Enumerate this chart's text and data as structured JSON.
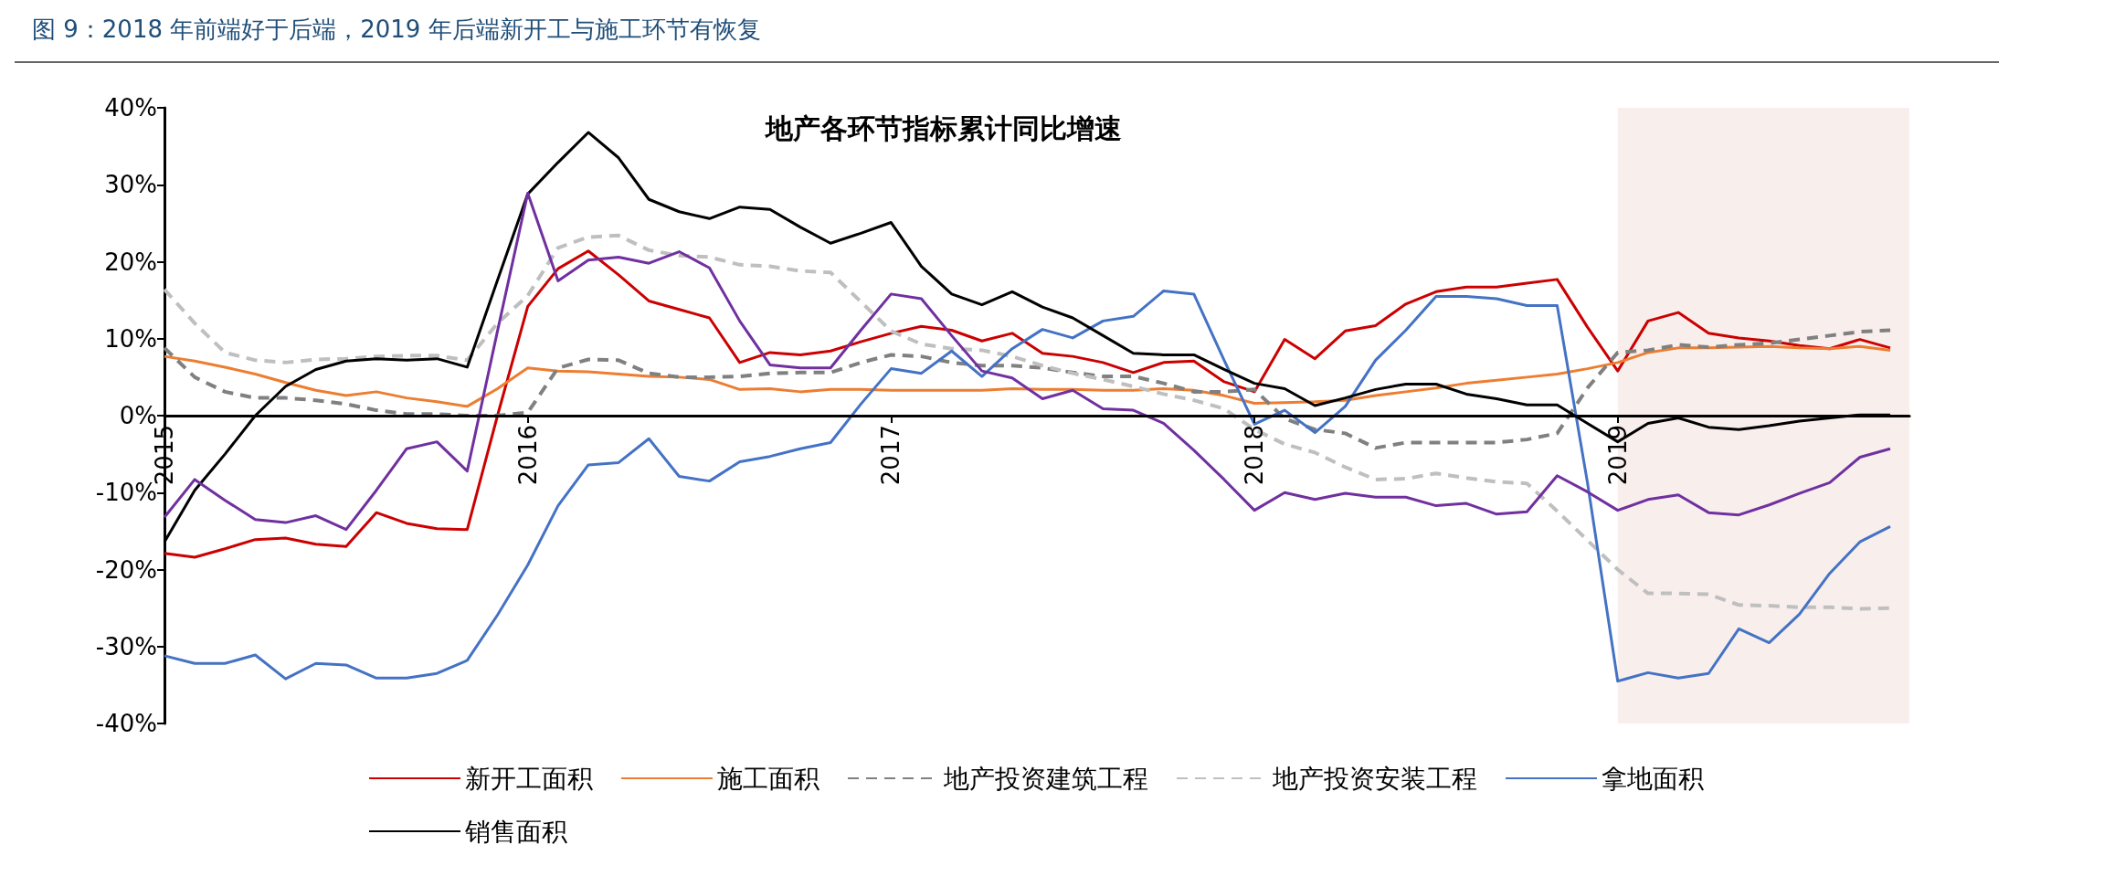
{
  "chart_data": {
    "type": "line",
    "title": "图 9：2018 年前端好于后端，2019 年后端新开工与施工环节有恢复",
    "subtitle": "地产各环节指标累计同比增速",
    "x": [
      "2015-01",
      "2015-02",
      "2015-03",
      "2015-04",
      "2015-05",
      "2015-06",
      "2015-07",
      "2015-08",
      "2015-09",
      "2015-10",
      "2015-11",
      "2015-12",
      "2016-01",
      "2016-02",
      "2016-03",
      "2016-04",
      "2016-05",
      "2016-06",
      "2016-07",
      "2016-08",
      "2016-09",
      "2016-10",
      "2016-11",
      "2016-12",
      "2017-01",
      "2017-02",
      "2017-03",
      "2017-04",
      "2017-05",
      "2017-06",
      "2017-07",
      "2017-08",
      "2017-09",
      "2017-10",
      "2017-11",
      "2017-12",
      "2018-01",
      "2018-02",
      "2018-03",
      "2018-04",
      "2018-05",
      "2018-06",
      "2018-07",
      "2018-08",
      "2018-09",
      "2018-10",
      "2018-11",
      "2018-12",
      "2019-01",
      "2019-02",
      "2019-03",
      "2019-04",
      "2019-05",
      "2019-06",
      "2019-07",
      "2019-08",
      "2019-09",
      "2019-10"
    ],
    "xlim": [
      "2015-01",
      "2019-10-20"
    ],
    "xticks": [
      {
        "value": "2015-01",
        "label": "2015"
      },
      {
        "value": "2016-01",
        "label": "2016"
      },
      {
        "value": "2017-01",
        "label": "2017"
      },
      {
        "value": "2018-01",
        "label": "2018"
      },
      {
        "value": "2019-01",
        "label": "2019"
      }
    ],
    "ylim": [
      -40,
      40
    ],
    "yticks": [
      {
        "value": -40,
        "label": "-40%"
      },
      {
        "value": -30,
        "label": "-30%"
      },
      {
        "value": -20,
        "label": "-20%"
      },
      {
        "value": -10,
        "label": "-10%"
      },
      {
        "value": 0,
        "label": "0%"
      },
      {
        "value": 10,
        "label": "10%"
      },
      {
        "value": 20,
        "label": "20%"
      },
      {
        "value": 30,
        "label": "30%"
      },
      {
        "value": 40,
        "label": "40%"
      }
    ],
    "grid": false,
    "legend": "bottom",
    "marker": "none",
    "bands": [
      {
        "axis": "x",
        "from": "2019-01",
        "to": "2019-10-20",
        "color": "#f8efed"
      }
    ],
    "series": [
      {
        "name": "新开工面积",
        "color": "#cc0000",
        "line_style": "solid",
        "values": [
          -17.9,
          -18.4,
          -17.3,
          -16.1,
          -15.9,
          -16.7,
          -17.0,
          -12.6,
          -14.0,
          -14.7,
          -14.8,
          0,
          14.2,
          19.1,
          21.4,
          18.3,
          14.9,
          13.8,
          12.7,
          6.9,
          8.2,
          7.9,
          8.4,
          9.6,
          10.7,
          11.6,
          11.1,
          9.7,
          10.7,
          8.1,
          7.7,
          6.9,
          5.6,
          6.9,
          7.1,
          4.4,
          3.1,
          9.9,
          7.4,
          11.0,
          11.7,
          14.5,
          16.1,
          16.7,
          16.7,
          17.2,
          17.7,
          11.5,
          5.8,
          12.3,
          13.4,
          10.7,
          10.1,
          9.7,
          9.1,
          8.7,
          9.9,
          8.8
        ]
      },
      {
        "name": "施工面积",
        "color": "#ed7d31",
        "line_style": "solid",
        "values": [
          7.7,
          7.1,
          6.3,
          5.4,
          4.3,
          3.3,
          2.6,
          3.1,
          2.3,
          1.8,
          1.2,
          3.5,
          6.2,
          5.8,
          5.7,
          5.4,
          5.1,
          5.0,
          4.7,
          3.4,
          3.5,
          3.1,
          3.4,
          3.4,
          3.3,
          3.3,
          3.3,
          3.3,
          3.5,
          3.4,
          3.4,
          3.3,
          3.3,
          3.5,
          3.3,
          2.6,
          1.6,
          1.7,
          1.8,
          2.0,
          2.6,
          3.1,
          3.6,
          4.2,
          4.6,
          5.0,
          5.4,
          6.1,
          6.9,
          8.2,
          8.8,
          8.8,
          8.9,
          9.0,
          8.8,
          8.7,
          9.0,
          8.5
        ]
      },
      {
        "name": "地产投资建筑工程",
        "color": "#808080",
        "line_style": "dashed",
        "values": [
          8.8,
          5.0,
          3.1,
          2.3,
          2.3,
          2.0,
          1.5,
          0.7,
          0.2,
          0.2,
          0,
          0,
          0.4,
          6.2,
          7.3,
          7.2,
          5.5,
          5.0,
          5.0,
          5.1,
          5.5,
          5.6,
          5.6,
          6.9,
          7.9,
          7.7,
          6.9,
          6.5,
          6.5,
          6.2,
          5.6,
          5.1,
          5.1,
          4.2,
          3.1,
          3.1,
          3.4,
          -0.4,
          -1.8,
          -2.3,
          -4.2,
          -3.5,
          -3.5,
          -3.5,
          -3.5,
          -3.1,
          -2.3,
          3.6,
          8.2,
          8.5,
          9.2,
          8.9,
          9.2,
          9.4,
          9.9,
          10.4,
          10.9,
          11.1
        ]
      },
      {
        "name": "地产投资安装工程",
        "color": "#bfbfbf",
        "line_style": "dashed",
        "values": [
          16.4,
          12.0,
          8.2,
          7.2,
          6.9,
          7.3,
          7.4,
          7.7,
          7.8,
          7.8,
          7.2,
          12.0,
          15.6,
          21.8,
          23.2,
          23.4,
          21.5,
          20.8,
          20.6,
          19.6,
          19.4,
          18.8,
          18.6,
          14.8,
          11.0,
          9.3,
          8.7,
          8.5,
          7.7,
          6.5,
          5.5,
          4.7,
          3.8,
          2.8,
          2.0,
          0.9,
          -1.8,
          -3.7,
          -4.8,
          -6.7,
          -8.3,
          -8.2,
          -7.5,
          -8.1,
          -8.6,
          -8.8,
          -12.4,
          -16.2,
          -20.0,
          -23.1,
          -23.1,
          -23.2,
          -24.6,
          -24.7,
          -24.9,
          -24.9,
          -25.1,
          -25.0
        ]
      },
      {
        "name": "拿地面积",
        "color": "#4472c4",
        "line_style": "solid",
        "values": [
          -31.2,
          -32.2,
          -32.2,
          -31.1,
          -34.2,
          -32.2,
          -32.4,
          -34.1,
          -34.1,
          -33.5,
          -31.8,
          -25.9,
          -19.4,
          -11.7,
          -6.4,
          -6.1,
          -3.0,
          -7.9,
          -8.5,
          -6.0,
          -5.3,
          -4.3,
          -3.5,
          1.5,
          6.1,
          5.5,
          8.4,
          5.1,
          8.7,
          11.2,
          10.1,
          12.3,
          12.9,
          16.2,
          15.8,
          7.2,
          -1.1,
          0.7,
          -2.2,
          1.2,
          7.2,
          11.1,
          15.5,
          15.5,
          15.2,
          14.3,
          14.3,
          -8.7,
          -34.5,
          -33.4,
          -34.1,
          -33.5,
          -27.7,
          -29.5,
          -25.8,
          -20.5,
          -16.4,
          -14.4
        ]
      },
      {
        "name": "销售面积",
        "color": "#000000",
        "line_style": "solid",
        "values": [
          -16.4,
          -9.7,
          -5.0,
          0,
          3.8,
          6.0,
          7.1,
          7.4,
          7.2,
          7.4,
          6.3,
          17.6,
          28.8,
          32.9,
          36.8,
          33.5,
          28.1,
          26.5,
          25.6,
          27.1,
          26.8,
          24.5,
          22.4,
          23.7,
          25.1,
          19.4,
          15.8,
          14.4,
          16.1,
          14.1,
          12.7,
          10.4,
          8.1,
          7.9,
          7.9,
          6.0,
          4.2,
          3.5,
          1.3,
          2.3,
          3.4,
          4.1,
          4.1,
          2.8,
          2.2,
          1.4,
          1.4,
          -1.0,
          -3.4,
          -1.0,
          -0.3,
          -1.5,
          -1.8,
          -1.3,
          -0.7,
          -0.3,
          0.1,
          0.1
        ]
      },
      {
        "color": "#7030a0",
        "line_style": "solid",
        "values": [
          -13.2,
          -8.3,
          -11.0,
          -13.5,
          -13.9,
          -13.0,
          -14.8,
          -9.7,
          -4.3,
          -3.4,
          -7.2,
          11.0,
          28.9,
          17.5,
          20.2,
          20.6,
          19.8,
          21.3,
          19.2,
          12.3,
          6.6,
          6.2,
          6.2,
          11.1,
          15.8,
          15.2,
          10.4,
          5.8,
          4.9,
          2.2,
          3.3,
          0.9,
          0.7,
          -1.0,
          -4.5,
          -8.3,
          -12.3,
          -10.0,
          -10.9,
          -10.1,
          -10.6,
          -10.6,
          -11.7,
          -11.4,
          -12.8,
          -12.5,
          -7.8,
          -9.9,
          -12.3,
          -10.9,
          -10.3,
          -12.6,
          -12.9,
          -11.6,
          -10.1,
          -8.7,
          -5.4,
          -4.3
        ]
      }
    ]
  }
}
